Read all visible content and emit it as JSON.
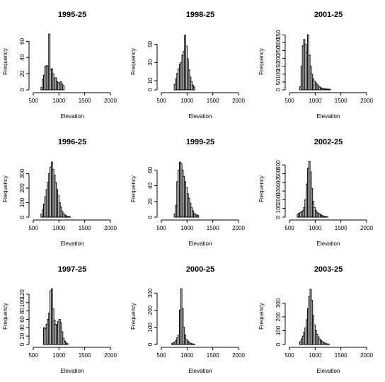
{
  "chart_data": [
    {
      "type": "bar",
      "title": "1995-25",
      "xlabel": "Elevation",
      "ylabel": "Frequency",
      "xlim": [
        500,
        2000
      ],
      "ylim": [
        0,
        70
      ],
      "x_ticks": [
        500,
        1000,
        1500,
        2000
      ],
      "y_ticks": [
        0,
        20,
        40,
        60
      ],
      "bin_width": 25,
      "bins_start": 650,
      "values": [
        3,
        13,
        18,
        29,
        30,
        29,
        69,
        25,
        26,
        20,
        14,
        15,
        10,
        9,
        8,
        10,
        7,
        5
      ]
    },
    {
      "type": "bar",
      "title": "1996-25",
      "xlabel": "Elevation",
      "ylabel": "Frequency",
      "xlim": [
        500,
        2000
      ],
      "ylim": [
        0,
        390
      ],
      "x_ticks": [
        500,
        1000,
        1500,
        2000
      ],
      "y_ticks": [
        0,
        100,
        200,
        300
      ],
      "bin_width": 25,
      "bins_start": 650,
      "values": [
        20,
        50,
        90,
        140,
        190,
        240,
        300,
        345,
        380,
        330,
        290,
        240,
        190,
        150,
        100,
        70,
        40,
        25,
        15,
        10,
        6,
        4,
        2
      ]
    },
    {
      "type": "bar",
      "title": "1997-25",
      "xlabel": "Elevation",
      "ylabel": "Frequency",
      "xlim": [
        500,
        2000
      ],
      "ylim": [
        0,
        135
      ],
      "x_ticks": [
        500,
        1000,
        1500,
        2000
      ],
      "y_ticks": [
        0,
        20,
        40,
        60,
        80,
        100,
        120
      ],
      "bin_width": 25,
      "bins_start": 700,
      "values": [
        40,
        38,
        48,
        60,
        75,
        128,
        133,
        85,
        58,
        48,
        45,
        55,
        60,
        52,
        30,
        15,
        8,
        4,
        2
      ]
    },
    {
      "type": "bar",
      "title": "1998-25",
      "xlabel": "Elevation",
      "ylabel": "Frequency",
      "xlim": [
        500,
        2000
      ],
      "ylim": [
        0,
        62
      ],
      "x_ticks": [
        500,
        1000,
        1500,
        2000
      ],
      "y_ticks": [
        0,
        10,
        30,
        50
      ],
      "bin_width": 25,
      "bins_start": 750,
      "values": [
        6,
        12,
        18,
        23,
        28,
        30,
        38,
        42,
        60,
        48,
        34,
        22,
        14,
        9,
        5,
        3
      ]
    },
    {
      "type": "bar",
      "title": "1999-25",
      "xlabel": "Elevation",
      "ylabel": "Frequency",
      "xlim": [
        500,
        2000
      ],
      "ylim": [
        0,
        72
      ],
      "x_ticks": [
        500,
        1000,
        1500,
        2000
      ],
      "y_ticks": [
        0,
        20,
        40,
        60
      ],
      "bin_width": 25,
      "bins_start": 750,
      "values": [
        4,
        15,
        45,
        60,
        70,
        68,
        60,
        52,
        45,
        38,
        30,
        24,
        18,
        12,
        8,
        5,
        3,
        3,
        2
      ]
    },
    {
      "type": "bar",
      "title": "2000-25",
      "xlabel": "Elevation",
      "ylabel": "Frequency",
      "xlim": [
        500,
        2000
      ],
      "ylim": [
        0,
        330
      ],
      "x_ticks": [
        500,
        1000,
        1500,
        2000
      ],
      "y_ticks": [
        0,
        100,
        200,
        300
      ],
      "bin_width": 25,
      "bins_start": 700,
      "values": [
        5,
        10,
        15,
        25,
        40,
        55,
        200,
        325,
        210,
        100,
        55,
        30,
        20,
        12,
        8,
        5,
        3,
        2
      ]
    },
    {
      "type": "bar",
      "title": "2001-25",
      "xlabel": "Elevation",
      "ylabel": "Frequency",
      "xlim": [
        500,
        2000
      ],
      "ylim": [
        0,
        360
      ],
      "x_ticks": [
        500,
        1000,
        1500,
        2000
      ],
      "y_ticks": [
        0,
        50,
        100,
        150,
        200,
        250,
        300,
        350
      ],
      "bin_width": 25,
      "bins_start": 700,
      "values": [
        20,
        150,
        280,
        320,
        290,
        240,
        350,
        220,
        150,
        100,
        70,
        55,
        45,
        35,
        25,
        18,
        12,
        10,
        8,
        6,
        5,
        5,
        4,
        3
      ]
    },
    {
      "type": "bar",
      "title": "2002-25",
      "xlabel": "Elevation",
      "ylabel": "Frequency",
      "xlim": [
        500,
        2000
      ],
      "ylim": [
        0,
        650
      ],
      "x_ticks": [
        500,
        1000,
        1500,
        2000
      ],
      "y_ticks": [
        0,
        100,
        200,
        300,
        400,
        500,
        600
      ],
      "bin_width": 25,
      "bins_start": 650,
      "values": [
        30,
        45,
        55,
        60,
        75,
        110,
        200,
        380,
        560,
        640,
        520,
        330,
        180,
        110,
        75,
        55,
        45,
        35,
        25,
        18,
        12,
        8,
        5,
        3
      ]
    },
    {
      "type": "bar",
      "title": "2003-25",
      "xlabel": "Elevation",
      "ylabel": "Frequency",
      "xlim": [
        500,
        2000
      ],
      "ylim": [
        0,
        410
      ],
      "x_ticks": [
        500,
        1000,
        1500,
        2000
      ],
      "y_ticks": [
        0,
        100,
        200,
        300
      ],
      "bin_width": 25,
      "bins_start": 700,
      "values": [
        20,
        40,
        60,
        90,
        120,
        180,
        260,
        350,
        400,
        320,
        210,
        140,
        100,
        75,
        55,
        40,
        30,
        22,
        15,
        10,
        6,
        4,
        3
      ]
    }
  ]
}
